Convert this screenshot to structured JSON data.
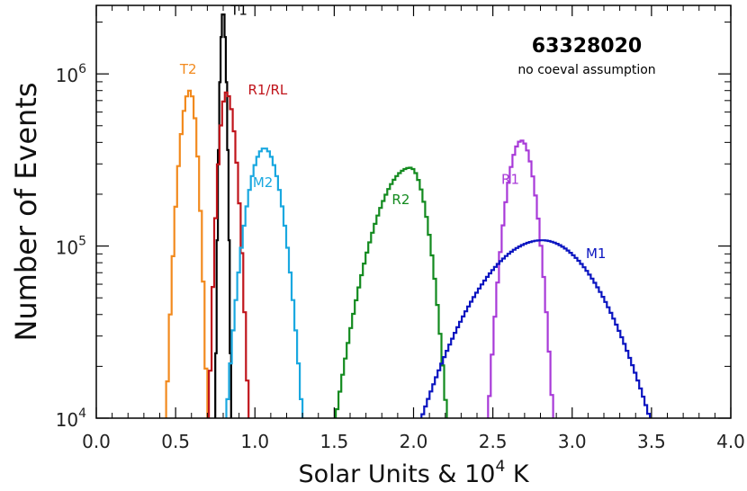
{
  "chart_data": {
    "type": "line",
    "xlabel": "Solar Units & 10⁴ K",
    "ylabel": "Number of Events",
    "xlim": [
      0.0,
      4.0
    ],
    "ylim": [
      10000,
      2500000
    ],
    "yscale": "log",
    "x_ticks": [
      "0.0",
      "0.5",
      "1.0",
      "1.5",
      "2.0",
      "2.5",
      "3.0",
      "3.5",
      "4.0"
    ],
    "y_ticks": [
      {
        "value": 10000,
        "base": "10",
        "exp": "4"
      },
      {
        "value": 100000,
        "base": "10",
        "exp": "5"
      },
      {
        "value": 1000000,
        "base": "10",
        "exp": "6"
      }
    ],
    "annotations": {
      "id": "63328020",
      "note": "no coeval assumption"
    },
    "series": [
      {
        "name": "T1",
        "color": "#000000",
        "center": 0.8,
        "peak": 2300000,
        "x_min": 0.75,
        "x_max": 0.85,
        "label_x": 0.9,
        "label_y": 2200000
      },
      {
        "name": "T2",
        "color": "#f28a1e",
        "center": 0.59,
        "peak": 800000,
        "x_min": 0.44,
        "x_max": 0.7,
        "label_x": 0.58,
        "label_y": 1000000
      },
      {
        "name": "R1/RL",
        "color": "#c0141b",
        "center": 0.82,
        "peak": 780000,
        "x_min": 0.71,
        "x_max": 0.96,
        "label_x": 1.08,
        "label_y": 760000
      },
      {
        "name": "M2",
        "color": "#1aa8e0",
        "center": 1.06,
        "peak": 370000,
        "x_min": 0.82,
        "x_max": 1.3,
        "label_x": 1.05,
        "label_y": 220000
      },
      {
        "name": "R2",
        "color": "#128a1e",
        "center": 1.98,
        "peak": 285000,
        "x_min": 1.51,
        "x_max": 2.21,
        "label_x": 1.92,
        "label_y": 175000
      },
      {
        "name": "R1",
        "color": "#a83ad8",
        "center": 2.68,
        "peak": 410000,
        "x_min": 2.47,
        "x_max": 2.88,
        "label_x": 2.61,
        "label_y": 230000
      },
      {
        "name": "M1",
        "color": "#0a14c0",
        "center": 2.81,
        "peak": 108000,
        "x_min": 2.05,
        "x_max": 3.49,
        "label_x": 3.15,
        "label_y": 85000
      }
    ]
  }
}
